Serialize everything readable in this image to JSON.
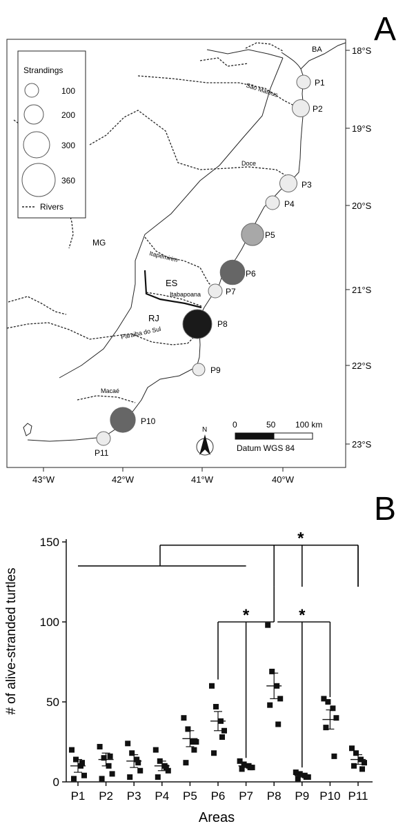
{
  "panel_a": {
    "label": "A",
    "map": {
      "lat_ticks": [
        "18°S",
        "19°S",
        "20°S",
        "21°S",
        "22°S",
        "23°S"
      ],
      "lon_ticks": [
        "43°W",
        "42°W",
        "41°W",
        "40°W"
      ],
      "region_labels": [
        "BA",
        "MG",
        "ES",
        "RJ"
      ],
      "river_labels": [
        "São Mateus",
        "Doce",
        "Itapemirim",
        "Itabapoana",
        "Paraiba do Sul",
        "Macaé"
      ],
      "legend": {
        "title": "Strandings",
        "sizes": [
          "100",
          "200",
          "300",
          "360"
        ],
        "rivers_label": "Rivers"
      },
      "scale_bar": {
        "labels": [
          "0",
          "50",
          "100 km"
        ],
        "datum": "Datum WGS 84"
      },
      "north_label": "N",
      "points": [
        {
          "label": "P1",
          "strandings": 100,
          "fill": "#ececec"
        },
        {
          "label": "P2",
          "strandings": 110,
          "fill": "#ececec"
        },
        {
          "label": "P3",
          "strandings": 110,
          "fill": "#ececec"
        },
        {
          "label": "P4",
          "strandings": 100,
          "fill": "#ececec"
        },
        {
          "label": "P5",
          "strandings": 200,
          "fill": "#a8a8a8"
        },
        {
          "label": "P6",
          "strandings": 250,
          "fill": "#666666"
        },
        {
          "label": "P7",
          "strandings": 100,
          "fill": "#ececec"
        },
        {
          "label": "P8",
          "strandings": 360,
          "fill": "#1a1a1a"
        },
        {
          "label": "P9",
          "strandings": 80,
          "fill": "#ececec"
        },
        {
          "label": "P10",
          "strandings": 260,
          "fill": "#666666"
        },
        {
          "label": "P11",
          "strandings": 100,
          "fill": "#ececec"
        }
      ]
    }
  },
  "panel_b": {
    "label": "B",
    "chart_data": {
      "type": "scatter",
      "xlabel": "Areas",
      "ylabel": "# of alive-stranded turtles",
      "ylim": [
        0,
        150
      ],
      "yticks": [
        0,
        50,
        100,
        150
      ],
      "categories": [
        "P1",
        "P2",
        "P3",
        "P4",
        "P5",
        "P6",
        "P7",
        "P8",
        "P9",
        "P10",
        "P11"
      ],
      "points": [
        [
          20,
          14,
          10,
          4,
          2,
          12
        ],
        [
          22,
          15,
          10,
          5,
          2,
          16
        ],
        [
          24,
          18,
          14,
          7,
          3,
          12
        ],
        [
          20,
          13,
          10,
          7,
          3,
          9
        ],
        [
          40,
          33,
          25,
          25,
          12,
          20
        ],
        [
          60,
          47,
          38,
          32,
          18,
          28
        ],
        [
          13,
          11,
          10,
          9,
          8,
          9
        ],
        [
          98,
          69,
          60,
          52,
          48,
          36
        ],
        [
          6,
          5,
          4,
          3,
          2,
          3
        ],
        [
          52,
          50,
          46,
          40,
          34,
          16
        ],
        [
          21,
          18,
          14,
          12,
          10,
          8
        ]
      ],
      "means": [
        10,
        14,
        13,
        10,
        27,
        38,
        10,
        60,
        4,
        39,
        14
      ],
      "sems": [
        4,
        4,
        4,
        3,
        5,
        6,
        1,
        8,
        1,
        6,
        3
      ],
      "significance_marks": [
        "*",
        "*",
        "*"
      ]
    }
  }
}
